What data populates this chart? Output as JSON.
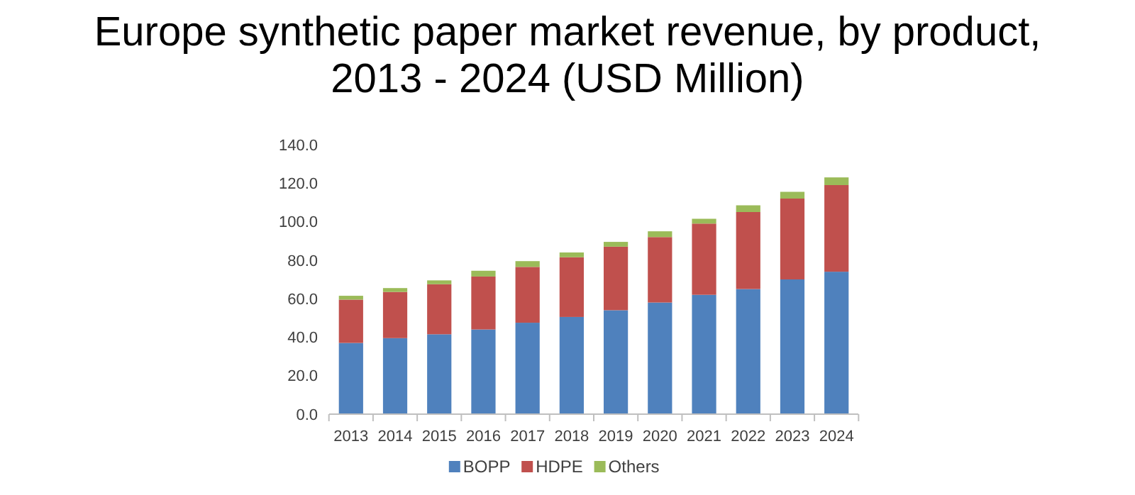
{
  "chart_data": {
    "type": "bar",
    "title": "Europe synthetic paper market revenue, by product, 2013 - 2024 (USD Million)",
    "stacked": true,
    "categories": [
      "2013",
      "2014",
      "2015",
      "2016",
      "2017",
      "2018",
      "2019",
      "2020",
      "2021",
      "2022",
      "2023",
      "2024"
    ],
    "series": [
      {
        "name": "BOPP",
        "color": "#4f81bd",
        "values": [
          37,
          39.5,
          41.5,
          44,
          47.5,
          50.5,
          54,
          58,
          62,
          65,
          70,
          74
        ]
      },
      {
        "name": "HDPE",
        "color": "#c0504d",
        "values": [
          22.5,
          24,
          26,
          27.5,
          29,
          31,
          33,
          34,
          37,
          40,
          42,
          45
        ]
      },
      {
        "name": "Others",
        "color": "#9bbb59",
        "values": [
          2,
          2,
          2,
          3,
          3,
          2.5,
          2.5,
          3,
          2.5,
          3.5,
          3.5,
          4
        ]
      }
    ],
    "ylim": [
      0,
      140
    ],
    "yticks": [
      {
        "value": 0,
        "label": "0.0"
      },
      {
        "value": 20,
        "label": "20.0"
      },
      {
        "value": 40,
        "label": "40.0"
      },
      {
        "value": 60,
        "label": "60.0"
      },
      {
        "value": 80,
        "label": "80.0"
      },
      {
        "value": 100,
        "label": "100.0"
      },
      {
        "value": 120,
        "label": "120.0"
      },
      {
        "value": 140,
        "label": "140.0"
      }
    ],
    "grid": false,
    "legend": "bottom"
  }
}
